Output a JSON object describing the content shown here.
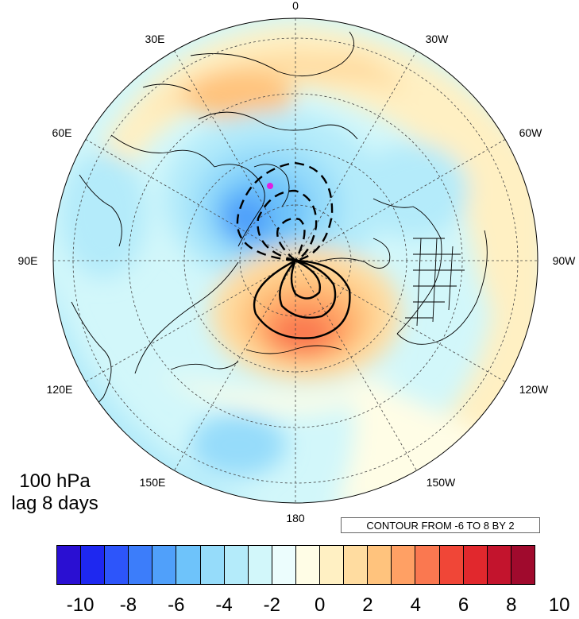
{
  "panel": {
    "level": "100 hPa",
    "lag": "lag 8 days"
  },
  "contour_info": "CONTOUR FROM -6 TO 8 BY 2",
  "longitude_labels": [
    "0",
    "30W",
    "60W",
    "90W",
    "120W",
    "150W",
    "180",
    "150E",
    "120E",
    "90E",
    "60E",
    "30E"
  ],
  "colorbar": {
    "tick_labels": [
      "-10",
      "-8",
      "-6",
      "-4",
      "-2",
      "0",
      "2",
      "4",
      "6",
      "8",
      "10"
    ],
    "colors": [
      "#2a0fd2",
      "#1e28f0",
      "#2d55fa",
      "#3c7dfa",
      "#50a0fa",
      "#6ec3fa",
      "#96dcfa",
      "#b4ebfa",
      "#d2f7fa",
      "#ecfdfd",
      "#fffde6",
      "#fff0c3",
      "#ffdca0",
      "#ffc37d",
      "#ffa064",
      "#fa7850",
      "#f04637",
      "#e1282d",
      "#c3142d",
      "#a00a2d"
    ]
  },
  "map": {
    "projection": "north polar stereographic",
    "shading": "anomaly field (filled)",
    "contours": "solid positive, dashed negative",
    "marker": "magenta-dot"
  }
}
